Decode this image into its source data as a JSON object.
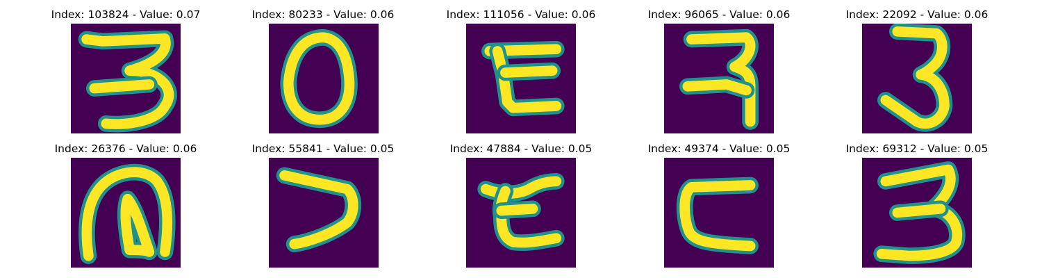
{
  "colormap": {
    "name": "viridis",
    "background": "#440154",
    "stops": [
      "#440154",
      "#3b528b",
      "#21918c",
      "#5ec962",
      "#fde725"
    ]
  },
  "grid": {
    "rows": 2,
    "columns": 5
  },
  "panels": [
    {
      "index": "103824",
      "value": "0.07",
      "title": "Index: 103824 - Value: 0.07",
      "content": "digit-3-like glyph"
    },
    {
      "index": "80233",
      "value": "0.06",
      "title": "Index: 80233 - Value: 0.06",
      "content": "oval ring glyph"
    },
    {
      "index": "111056",
      "value": "0.06",
      "title": "Index: 111056 - Value: 0.06",
      "content": "glyph with two horizontal bars joined by a diagonal"
    },
    {
      "index": "96065",
      "value": "0.06",
      "title": "Index: 96065 - Value: 0.06",
      "content": "glyph with a hooked top and a curling stem"
    },
    {
      "index": "22092",
      "value": "0.06",
      "title": "Index: 22092 - Value: 0.06",
      "content": "tall digit-3-like glyph"
    },
    {
      "index": "26376",
      "value": "0.06",
      "title": "Index: 26376 - Value: 0.06",
      "content": "glyph with an outer arch and an inner loop"
    },
    {
      "index": "55841",
      "value": "0.05",
      "title": "Index: 55841 - Value: 0.05",
      "content": "angular V-like glyph"
    },
    {
      "index": "47884",
      "value": "0.05",
      "title": "Index: 47884 - Value: 0.05",
      "content": "glyph with curved top and bottom bars"
    },
    {
      "index": "49374",
      "value": "0.05",
      "title": "Index: 49374 - Value: 0.05",
      "content": "C-like glyph"
    },
    {
      "index": "69312",
      "value": "0.05",
      "title": "Index: 69312 - Value: 0.05",
      "content": "digit-3-like glyph"
    }
  ]
}
